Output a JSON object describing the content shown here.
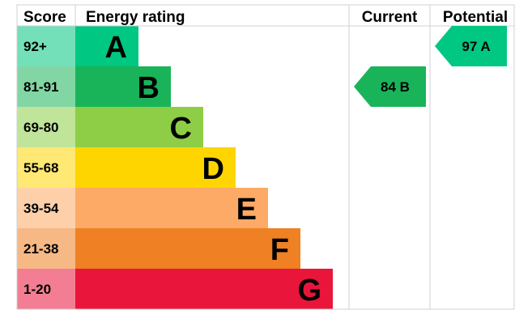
{
  "chart_data": {
    "type": "table",
    "headers": {
      "score": "Score",
      "rating": "Energy rating",
      "current": "Current",
      "potential": "Potential"
    },
    "bands": [
      {
        "score": "92+",
        "letter": "A",
        "color": "#00c781"
      },
      {
        "score": "81-91",
        "letter": "B",
        "color": "#19b459"
      },
      {
        "score": "69-80",
        "letter": "C",
        "color": "#8dce46"
      },
      {
        "score": "55-68",
        "letter": "D",
        "color": "#ffd500"
      },
      {
        "score": "39-54",
        "letter": "E",
        "color": "#fcaa65"
      },
      {
        "score": "21-38",
        "letter": "F",
        "color": "#ef8023"
      },
      {
        "score": "1-20",
        "letter": "G",
        "color": "#e9153b"
      }
    ],
    "current": {
      "value": 84,
      "letter": "B",
      "label": "84  B",
      "color": "#19b459"
    },
    "potential": {
      "value": 97,
      "letter": "A",
      "label": "97  A",
      "color": "#00c781"
    }
  }
}
